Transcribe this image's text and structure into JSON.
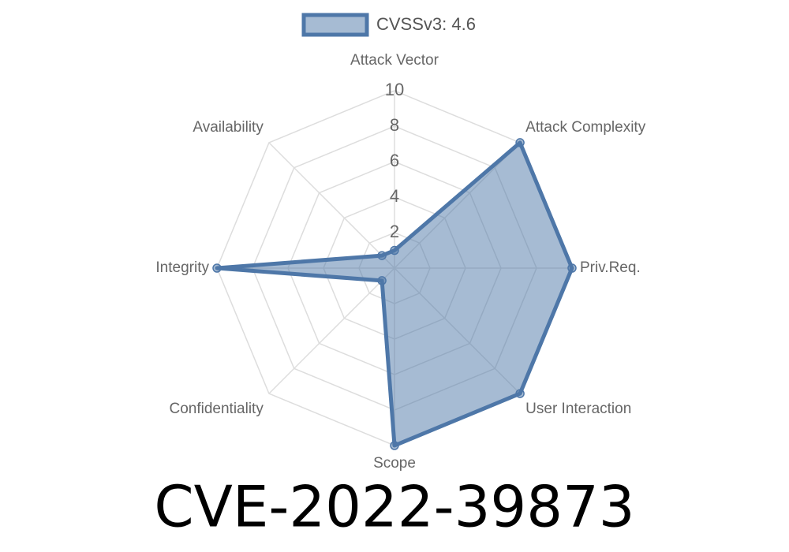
{
  "chart_data": {
    "type": "radar",
    "title": "CVE-2022-39873",
    "categories": [
      "Attack Vector",
      "Attack Complexity",
      "Priv.Req.",
      "User Interaction",
      "Scope",
      "Confidentiality",
      "Integrity",
      "Availability"
    ],
    "series": [
      {
        "name": "CVSSv3: 4.6",
        "color": "#4e77a8",
        "fill": "rgba(78,119,168,0.5)",
        "values": [
          1,
          10,
          10,
          10,
          10,
          1,
          10,
          1
        ]
      }
    ],
    "ylim": [
      0,
      10
    ],
    "yticks": [
      2,
      4,
      6,
      8,
      10
    ],
    "grid": true,
    "legend": "top"
  }
}
